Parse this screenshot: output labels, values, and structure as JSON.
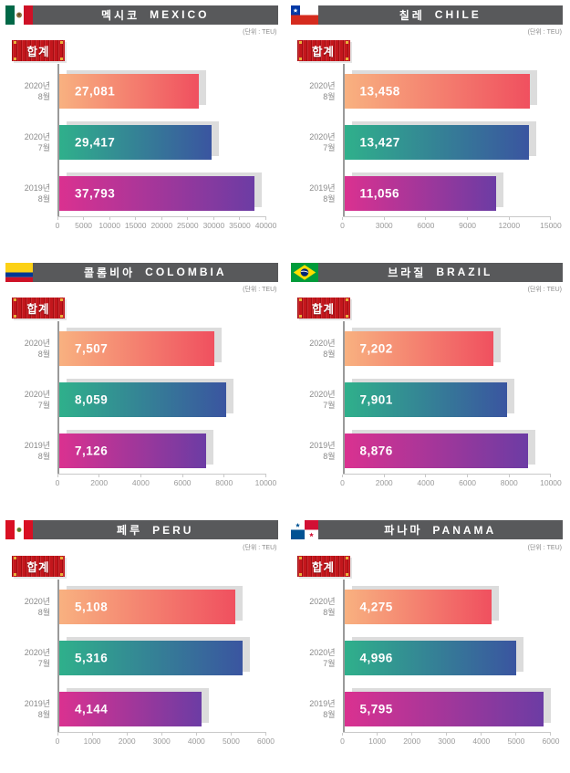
{
  "colors": {
    "header_bg": "#58595B",
    "badge_red": "#C3161C",
    "badge_corner_gold": "#E8B23A",
    "bar_shadow_gray": "#DCDCDC",
    "gradient_aug2020": [
      "#F8B180",
      "#F0505F"
    ],
    "gradient_jul2020": [
      "#2FB08B",
      "#3A55A0"
    ],
    "gradient_aug2019": [
      "#DA3190",
      "#6C3CA4"
    ],
    "axis_line": "#9a9a9a",
    "tick_text": "#9a9a9a",
    "category_text": "#8a8a8a"
  },
  "chart_data": [
    {
      "type": "bar",
      "title_ko": "멕시코",
      "title_en": "MEXICO",
      "flag_icon": "mexico-flag-icon",
      "unit_label": "(단위 : TEU)",
      "badge_label": "합계",
      "categories": [
        [
          "2020년",
          "8월"
        ],
        [
          "2020년",
          "7월"
        ],
        [
          "2019년",
          "8월"
        ]
      ],
      "values": [
        27081,
        29417,
        37793
      ],
      "value_labels": [
        "27,081",
        "29,417",
        "37,793"
      ],
      "xlim": [
        0,
        40000
      ],
      "xticks": [
        0,
        5000,
        10000,
        15000,
        20000,
        25000,
        30000,
        35000,
        40000
      ],
      "grid": false,
      "legend_position": "none"
    },
    {
      "type": "bar",
      "title_ko": "칠레",
      "title_en": "CHILE",
      "flag_icon": "chile-flag-icon",
      "unit_label": "(단위 : TEU)",
      "badge_label": "합계",
      "categories": [
        [
          "2020년",
          "8월"
        ],
        [
          "2020년",
          "7월"
        ],
        [
          "2019년",
          "8월"
        ]
      ],
      "values": [
        13458,
        13427,
        11056
      ],
      "value_labels": [
        "13,458",
        "13,427",
        "11,056"
      ],
      "xlim": [
        0,
        15000
      ],
      "xticks": [
        0,
        3000,
        6000,
        9000,
        12000,
        15000
      ],
      "grid": false,
      "legend_position": "none"
    },
    {
      "type": "bar",
      "title_ko": "콜롬비아",
      "title_en": "COLOMBIA",
      "flag_icon": "colombia-flag-icon",
      "unit_label": "(단위 : TEU)",
      "badge_label": "합계",
      "categories": [
        [
          "2020년",
          "8월"
        ],
        [
          "2020년",
          "7월"
        ],
        [
          "2019년",
          "8월"
        ]
      ],
      "values": [
        7507,
        8059,
        7126
      ],
      "value_labels": [
        "7,507",
        "8,059",
        "7,126"
      ],
      "xlim": [
        0,
        10000
      ],
      "xticks": [
        0,
        2000,
        4000,
        6000,
        8000,
        10000
      ],
      "grid": false,
      "legend_position": "none"
    },
    {
      "type": "bar",
      "title_ko": "브라질",
      "title_en": "BRAZIL",
      "flag_icon": "brazil-flag-icon",
      "unit_label": "(단위 : TEU)",
      "badge_label": "합계",
      "categories": [
        [
          "2020년",
          "8월"
        ],
        [
          "2020년",
          "7월"
        ],
        [
          "2019년",
          "8월"
        ]
      ],
      "values": [
        7202,
        7901,
        8876
      ],
      "value_labels": [
        "7,202",
        "7,901",
        "8,876"
      ],
      "xlim": [
        0,
        10000
      ],
      "xticks": [
        0,
        2000,
        4000,
        6000,
        8000,
        10000
      ],
      "grid": false,
      "legend_position": "none"
    },
    {
      "type": "bar",
      "title_ko": "페루",
      "title_en": "PERU",
      "flag_icon": "peru-flag-icon",
      "unit_label": "(단위 : TEU)",
      "badge_label": "합계",
      "categories": [
        [
          "2020년",
          "8월"
        ],
        [
          "2020년",
          "7월"
        ],
        [
          "2019년",
          "8월"
        ]
      ],
      "values": [
        5108,
        5316,
        4144
      ],
      "value_labels": [
        "5,108",
        "5,316",
        "4,144"
      ],
      "xlim": [
        0,
        6000
      ],
      "xticks": [
        0,
        1000,
        2000,
        3000,
        4000,
        5000,
        6000
      ],
      "grid": false,
      "legend_position": "none"
    },
    {
      "type": "bar",
      "title_ko": "파나마",
      "title_en": "PANAMA",
      "flag_icon": "panama-flag-icon",
      "unit_label": "(단위 : TEU)",
      "badge_label": "합계",
      "categories": [
        [
          "2020년",
          "8월"
        ],
        [
          "2020년",
          "7월"
        ],
        [
          "2019년",
          "8월"
        ]
      ],
      "values": [
        4275,
        4996,
        5795
      ],
      "value_labels": [
        "4,275",
        "4,996",
        "5,795"
      ],
      "xlim": [
        0,
        6000
      ],
      "xticks": [
        0,
        1000,
        2000,
        3000,
        4000,
        5000,
        6000
      ],
      "grid": false,
      "legend_position": "none"
    }
  ]
}
